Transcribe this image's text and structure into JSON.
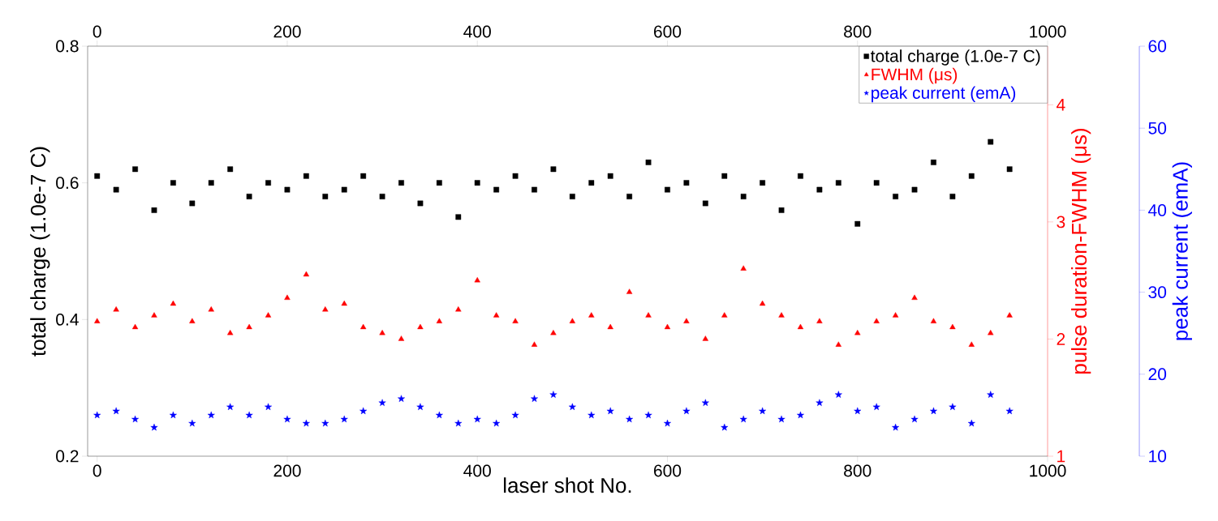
{
  "chart_data": {
    "type": "scatter",
    "xlabel": "laser shot No.",
    "ylabel": "total charge (1.0e-7 C)",
    "y2label": "pulse duration-FWHM (μs)",
    "y3label": "peak current (emA)",
    "xlim": [
      -10,
      1000
    ],
    "xticks": [
      0,
      200,
      400,
      600,
      800,
      1000
    ],
    "x2lim": [
      -10,
      1000
    ],
    "x2ticks": [
      0,
      200,
      400,
      600,
      800,
      1000
    ],
    "ylim": [
      0.2,
      0.8
    ],
    "yticks": [
      0.2,
      0.4,
      0.6,
      0.8
    ],
    "y2lim": [
      1,
      4.5
    ],
    "y2ticks": [
      1,
      2,
      3,
      4
    ],
    "y3lim": [
      10,
      60
    ],
    "y3ticks": [
      10,
      20,
      30,
      40,
      50,
      60
    ],
    "legend": "top right",
    "series": [
      {
        "name": "total charge (1.0e-7 C)",
        "color": "#000000",
        "marker": "square",
        "x": [
          0,
          20,
          40,
          60,
          80,
          100,
          120,
          140,
          160,
          180,
          200,
          220,
          240,
          260,
          280,
          300,
          320,
          340,
          360,
          380,
          400,
          420,
          440,
          460,
          480,
          500,
          520,
          540,
          560,
          580,
          600,
          620,
          640,
          660,
          680,
          700,
          720,
          740,
          760,
          780,
          800,
          820,
          840,
          860,
          880,
          900,
          920,
          940,
          960
        ],
        "values": [
          0.61,
          0.59,
          0.62,
          0.56,
          0.6,
          0.57,
          0.6,
          0.62,
          0.58,
          0.6,
          0.59,
          0.61,
          0.58,
          0.59,
          0.61,
          0.58,
          0.6,
          0.57,
          0.6,
          0.55,
          0.6,
          0.59,
          0.61,
          0.59,
          0.62,
          0.58,
          0.6,
          0.61,
          0.58,
          0.63,
          0.59,
          0.6,
          0.57,
          0.61,
          0.58,
          0.6,
          0.56,
          0.61,
          0.59,
          0.6,
          0.54,
          0.6,
          0.58,
          0.59,
          0.63,
          0.58,
          0.61,
          0.66,
          0.62
        ]
      },
      {
        "name": "FWHM (μs)",
        "color": "#ff0000",
        "marker": "triangle",
        "axis": "y2",
        "x": [
          0,
          20,
          40,
          60,
          80,
          100,
          120,
          140,
          160,
          180,
          200,
          220,
          240,
          260,
          280,
          300,
          320,
          340,
          360,
          380,
          400,
          420,
          440,
          460,
          480,
          500,
          520,
          540,
          560,
          580,
          600,
          620,
          640,
          660,
          680,
          700,
          720,
          740,
          760,
          780,
          800,
          820,
          840,
          860,
          880,
          900,
          920,
          940,
          960
        ],
        "values": [
          2.15,
          2.25,
          2.1,
          2.2,
          2.3,
          2.15,
          2.25,
          2.05,
          2.1,
          2.2,
          2.35,
          2.55,
          2.25,
          2.3,
          2.1,
          2.05,
          2.0,
          2.1,
          2.15,
          2.25,
          2.5,
          2.2,
          2.15,
          1.95,
          2.05,
          2.15,
          2.2,
          2.1,
          2.4,
          2.2,
          2.1,
          2.15,
          2.0,
          2.2,
          2.6,
          2.3,
          2.2,
          2.1,
          2.15,
          1.95,
          2.05,
          2.15,
          2.2,
          2.35,
          2.15,
          2.1,
          1.95,
          2.05,
          2.2
        ]
      },
      {
        "name": "peak current (emA)",
        "color": "#0000ff",
        "marker": "star",
        "axis": "y3",
        "x": [
          0,
          20,
          40,
          60,
          80,
          100,
          120,
          140,
          160,
          180,
          200,
          220,
          240,
          260,
          280,
          300,
          320,
          340,
          360,
          380,
          400,
          420,
          440,
          460,
          480,
          500,
          520,
          540,
          560,
          580,
          600,
          620,
          640,
          660,
          680,
          700,
          720,
          740,
          760,
          780,
          800,
          820,
          840,
          860,
          880,
          900,
          920,
          940,
          960
        ],
        "values": [
          15,
          15.5,
          14.5,
          13.5,
          15,
          14,
          15,
          16,
          15,
          16,
          14.5,
          14,
          14,
          14.5,
          15.5,
          16.5,
          17,
          16,
          15,
          14,
          14.5,
          14,
          15,
          17,
          17.5,
          16,
          15,
          15.5,
          14.5,
          15,
          14,
          15.5,
          16.5,
          13.5,
          14.5,
          15.5,
          14.5,
          15,
          16.5,
          17.5,
          15.5,
          16,
          13.5,
          14.5,
          15.5,
          16,
          14,
          17.5,
          15.5
        ]
      }
    ]
  }
}
